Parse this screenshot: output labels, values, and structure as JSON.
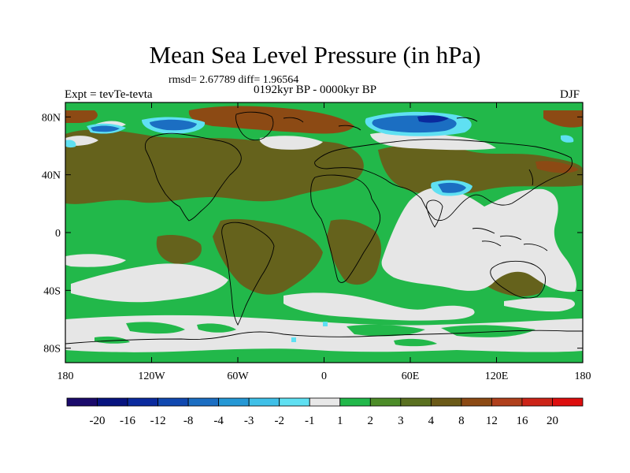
{
  "title": "Mean Sea Level Pressure (in hPa)",
  "stats": "rmsd= 2.67789 diff= 1.96564",
  "period": "0192kyr BP - 0000kyr BP",
  "experiment": "Expt = tevTe-tevta",
  "season": "DJF",
  "y_ticks": [
    {
      "label": "80N",
      "lat": 80
    },
    {
      "label": "40N",
      "lat": 40
    },
    {
      "label": "0",
      "lat": 0
    },
    {
      "label": "40S",
      "lat": -40
    },
    {
      "label": "80S",
      "lat": -80
    }
  ],
  "x_ticks": [
    {
      "label": "180",
      "lon": -180
    },
    {
      "label": "120W",
      "lon": -120
    },
    {
      "label": "60W",
      "lon": -60
    },
    {
      "label": "0",
      "lon": 0
    },
    {
      "label": "60E",
      "lon": 60
    },
    {
      "label": "120E",
      "lon": 120
    },
    {
      "label": "180",
      "lon": 180
    }
  ],
  "colorbar": {
    "colors": [
      "#1a0a6b",
      "#07137f",
      "#0a2a9e",
      "#1048b0",
      "#1b6ec2",
      "#2598d5",
      "#3fc0e8",
      "#5fe0f2",
      "#e8e8e8",
      "#22b84a",
      "#4c8c28",
      "#5a7020",
      "#6b5a18",
      "#8c4a14",
      "#b0401c",
      "#cc2418",
      "#dd0e0e"
    ],
    "labels": [
      "-20",
      "-16",
      "-12",
      "-8",
      "-4",
      "-3",
      "-2",
      "-1",
      "1",
      "2",
      "3",
      "4",
      "8",
      "12",
      "16",
      "20"
    ]
  },
  "colors": {
    "neutral": "#e6e6e6",
    "pos_low": "#22b84a",
    "pos_mid": "#6b5a18",
    "pos_high": "#8c4a14",
    "neg_low": "#5fe0f2",
    "neg_mid": "#1b6ec2",
    "neg_high": "#0a2a9e"
  }
}
